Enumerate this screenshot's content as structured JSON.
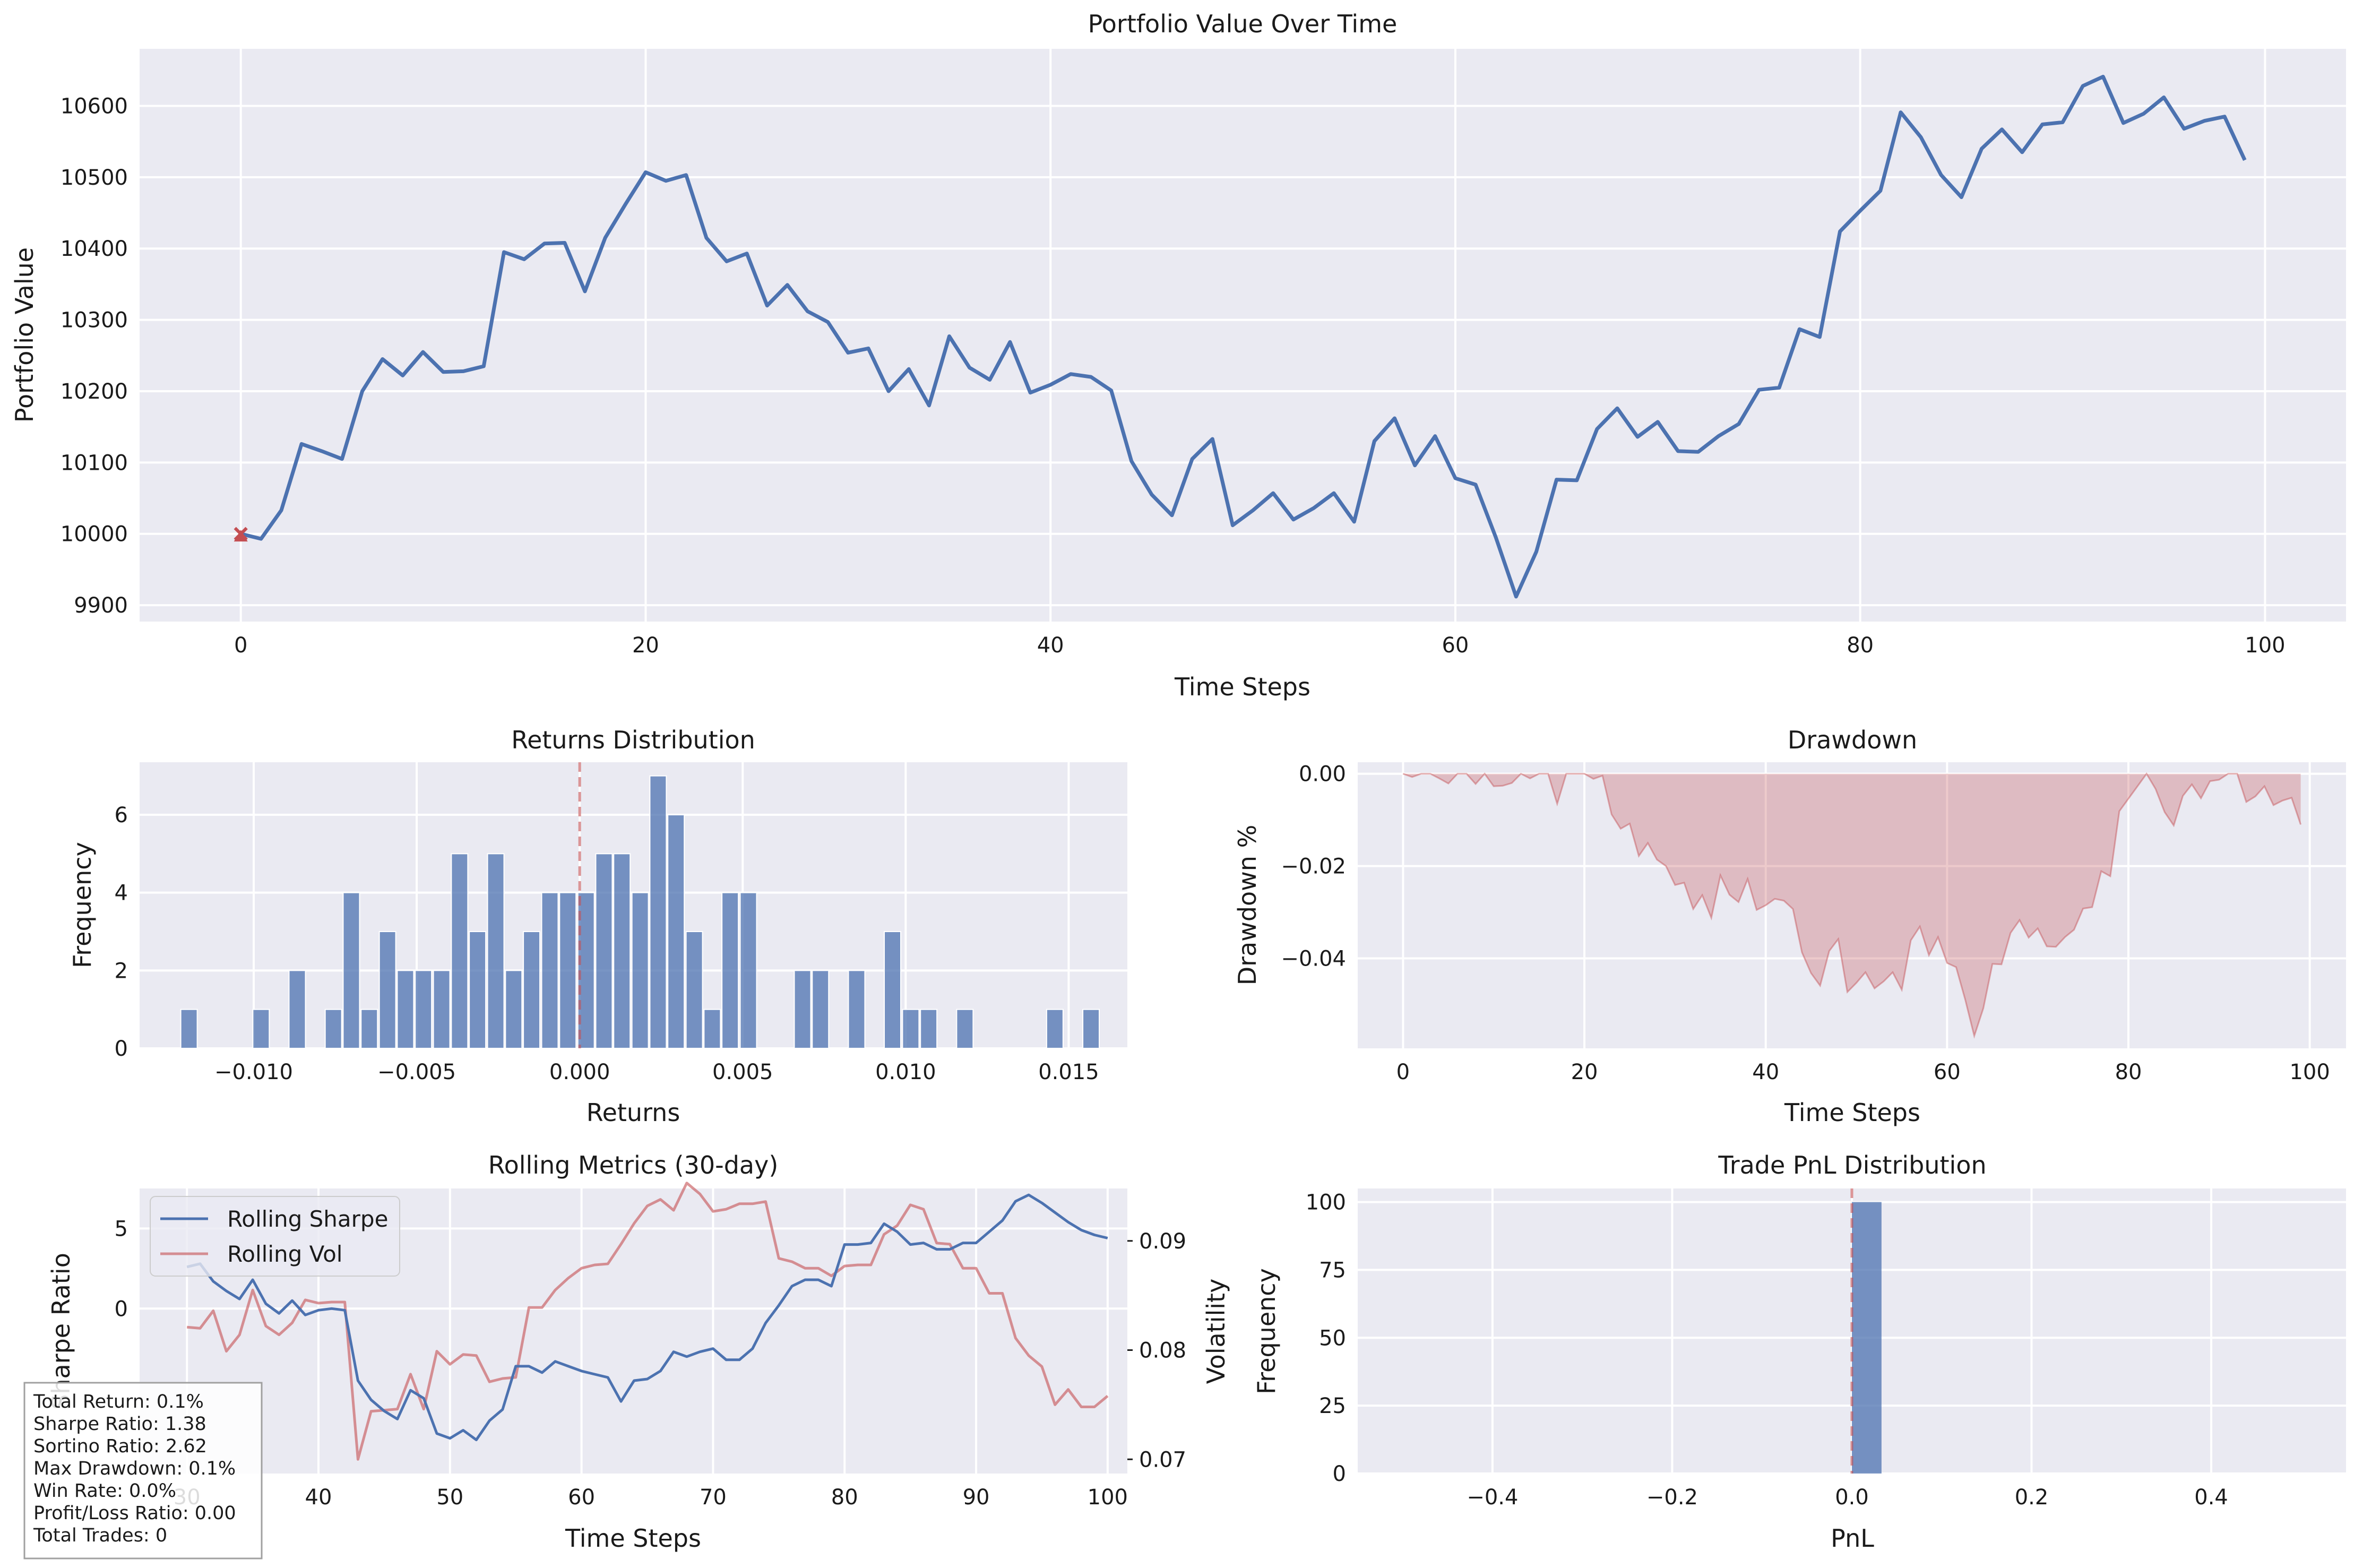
{
  "colors": {
    "blue": "#4c72b0",
    "red": "#c44e52",
    "panel": "#eaeaf2"
  },
  "chart_data": [
    {
      "type": "line",
      "title": "Portfolio Value Over Time",
      "xlabel": "Time Steps",
      "ylabel": "Portfolio Value",
      "xlim": [
        -5,
        104
      ],
      "ylim": [
        9877,
        10680
      ],
      "xticks": [
        0,
        20,
        40,
        60,
        80,
        100
      ],
      "yticks": [
        9900,
        10000,
        10100,
        10200,
        10300,
        10400,
        10500,
        10600
      ],
      "xtick_labels": [
        "0",
        "20",
        "40",
        "60",
        "80",
        "100"
      ],
      "ytick_labels": [
        "9900",
        "10000",
        "10100",
        "10200",
        "10300",
        "10400",
        "10500",
        "10600"
      ],
      "grid": true,
      "markers": [
        {
          "x": 0,
          "y": 10000,
          "marker": "x"
        },
        {
          "x": 0,
          "y": 9996,
          "marker": "^"
        }
      ],
      "values": [
        10000,
        9993,
        10033,
        10126,
        10116,
        10105,
        10200,
        10245,
        10222,
        10255,
        10227,
        10228,
        10235,
        10395,
        10385,
        10407,
        10408,
        10340,
        10415,
        10462,
        10507,
        10495,
        10503,
        10415,
        10382,
        10393,
        10320,
        10349,
        10312,
        10297,
        10254,
        10260,
        10200,
        10231,
        10180,
        10277,
        10233,
        10216,
        10269,
        10198,
        10209,
        10224,
        10220,
        10201,
        10102,
        10055,
        10026,
        10105,
        10133,
        10012,
        10033,
        10057,
        10020,
        10036,
        10057,
        10017,
        10130,
        10162,
        10096,
        10137,
        10078,
        10069,
        9995,
        9912,
        9975,
        10076,
        10075,
        10147,
        10176,
        10136,
        10157,
        10116,
        10115,
        10137,
        10154,
        10202,
        10205,
        10287,
        10276,
        10424,
        10453,
        10481,
        10591,
        10556,
        10503,
        10472,
        10540,
        10567,
        10535,
        10574,
        10577,
        10628,
        10641,
        10576,
        10589,
        10612,
        10568,
        10579,
        10585,
        10524
      ]
    },
    {
      "type": "bar",
      "title": "Returns Distribution",
      "xlabel": "Returns",
      "ylabel": "Frequency",
      "xlim": [
        -0.0135,
        0.0168
      ],
      "ylim": [
        0,
        7.35
      ],
      "xticks": [
        -0.01,
        -0.005,
        0.0,
        0.005,
        0.01,
        0.015
      ],
      "yticks": [
        0,
        2,
        4,
        6
      ],
      "xtick_labels": [
        "−0.010",
        "−0.005",
        "0.000",
        "0.005",
        "0.010",
        "0.015"
      ],
      "ytick_labels": [
        "0",
        "2",
        "4",
        "6"
      ],
      "bin_width": 0.000553,
      "mean_line": 0.0,
      "bins": [
        {
          "x": -0.01196,
          "v": 1
        },
        {
          "x": -0.00975,
          "v": 1
        },
        {
          "x": -0.00864,
          "v": 2
        },
        {
          "x": -0.00753,
          "v": 1
        },
        {
          "x": -0.00698,
          "v": 4
        },
        {
          "x": -0.00643,
          "v": 1
        },
        {
          "x": -0.00587,
          "v": 3
        },
        {
          "x": -0.00532,
          "v": 2
        },
        {
          "x": -0.00477,
          "v": 2
        },
        {
          "x": -0.00421,
          "v": 2
        },
        {
          "x": -0.00366,
          "v": 5
        },
        {
          "x": -0.00311,
          "v": 3
        },
        {
          "x": -0.00255,
          "v": 5
        },
        {
          "x": -0.002,
          "v": 2
        },
        {
          "x": -0.00145,
          "v": 3
        },
        {
          "x": -0.00089,
          "v": 4
        },
        {
          "x": -0.00034,
          "v": 4
        },
        {
          "x": 0.00022,
          "v": 4
        },
        {
          "x": 0.00077,
          "v": 5
        },
        {
          "x": 0.00132,
          "v": 5
        },
        {
          "x": 0.00188,
          "v": 4
        },
        {
          "x": 0.00243,
          "v": 7
        },
        {
          "x": 0.00298,
          "v": 6
        },
        {
          "x": 0.00354,
          "v": 3
        },
        {
          "x": 0.00409,
          "v": 1
        },
        {
          "x": 0.00464,
          "v": 4
        },
        {
          "x": 0.0052,
          "v": 4
        },
        {
          "x": 0.00686,
          "v": 2
        },
        {
          "x": 0.00741,
          "v": 2
        },
        {
          "x": 0.00852,
          "v": 2
        },
        {
          "x": 0.00962,
          "v": 3
        },
        {
          "x": 0.01018,
          "v": 1
        },
        {
          "x": 0.01073,
          "v": 1
        },
        {
          "x": 0.01184,
          "v": 1
        },
        {
          "x": 0.0146,
          "v": 1
        },
        {
          "x": 0.01571,
          "v": 1
        }
      ]
    },
    {
      "type": "area",
      "title": "Drawdown",
      "xlabel": "Time Steps",
      "ylabel": "Drawdown %",
      "xlim": [
        -5,
        104
      ],
      "ylim": [
        -0.0595,
        0.0025
      ],
      "xticks": [
        0,
        20,
        40,
        60,
        80,
        100
      ],
      "yticks": [
        0.0,
        -0.02,
        -0.04
      ],
      "xtick_labels": [
        "0",
        "20",
        "40",
        "60",
        "80",
        "100"
      ],
      "ytick_labels": [
        "0.00",
        "−0.02",
        "−0.04"
      ],
      "values": [
        0.0,
        -0.0007,
        0.0,
        0.0,
        -0.001,
        -0.0021,
        0.0,
        0.0,
        -0.0022,
        0.0,
        -0.0027,
        -0.0026,
        -0.002,
        0.0,
        -0.001,
        0.0,
        0.0,
        -0.0065,
        0.0,
        0.0,
        0.0,
        -0.0011,
        -0.0004,
        -0.0088,
        -0.0119,
        -0.0108,
        -0.0178,
        -0.015,
        -0.0186,
        -0.02,
        -0.0241,
        -0.0236,
        -0.0293,
        -0.0263,
        -0.0312,
        -0.022,
        -0.0262,
        -0.0278,
        -0.0228,
        -0.0295,
        -0.0285,
        -0.0271,
        -0.0275,
        -0.0293,
        -0.0387,
        -0.0432,
        -0.0459,
        -0.0384,
        -0.0358,
        -0.0473,
        -0.0453,
        -0.043,
        -0.0465,
        -0.045,
        -0.043,
        -0.0468,
        -0.0361,
        -0.0331,
        -0.0393,
        -0.0354,
        -0.041,
        -0.0419,
        -0.0489,
        -0.0568,
        -0.0508,
        -0.0412,
        -0.0413,
        -0.0345,
        -0.0317,
        -0.0355,
        -0.0335,
        -0.0374,
        -0.0375,
        -0.0354,
        -0.0338,
        -0.0292,
        -0.0289,
        -0.0211,
        -0.0222,
        -0.0081,
        -0.0054,
        -0.0027,
        0.0,
        -0.0033,
        -0.0083,
        -0.0112,
        -0.0048,
        -0.0023,
        -0.0053,
        -0.0016,
        -0.0013,
        0.0,
        0.0,
        -0.0061,
        -0.0049,
        -0.0027,
        -0.0068,
        -0.0058,
        -0.0052,
        -0.011
      ]
    },
    {
      "type": "line",
      "title": "Rolling Metrics (30-day)",
      "xlabel": "Time Steps",
      "ylabel": "Sharpe Ratio",
      "y2label": "Volatility",
      "xlim": [
        26.4,
        101.5
      ],
      "ylim": [
        -10.3,
        7.5
      ],
      "y2lim": [
        0.0687,
        0.0948
      ],
      "xticks": [
        30,
        40,
        50,
        60,
        70,
        80,
        90,
        100
      ],
      "xtick_labels": [
        "30",
        "40",
        "50",
        "60",
        "70",
        "80",
        "90",
        "100"
      ],
      "yticks": [
        5,
        0
      ],
      "ytick_labels": [
        "5",
        "0"
      ],
      "y2ticks": [
        0.07,
        0.08,
        0.09
      ],
      "y2tick_labels": [
        "0.07",
        "0.08",
        "0.09"
      ],
      "legend": "upper-left",
      "x_start": 30,
      "series": [
        {
          "name": "Rolling Sharpe",
          "axis": "left",
          "values": [
            2.6,
            2.8,
            1.7,
            1.1,
            0.6,
            1.8,
            0.3,
            -0.3,
            0.5,
            -0.4,
            -0.1,
            0.0,
            -0.1,
            -4.5,
            -5.7,
            -6.4,
            -6.9,
            -5.1,
            -5.6,
            -7.8,
            -8.1,
            -7.6,
            -8.2,
            -7.0,
            -6.3,
            -3.6,
            -3.6,
            -4.0,
            -3.3,
            -3.6,
            -3.9,
            -4.1,
            -4.3,
            -5.8,
            -4.5,
            -4.4,
            -3.9,
            -2.7,
            -3.0,
            -2.7,
            -2.5,
            -3.2,
            -3.2,
            -2.5,
            -0.9,
            0.2,
            1.4,
            1.8,
            1.8,
            1.4,
            4.0,
            4.0,
            4.1,
            5.3,
            4.8,
            4.0,
            4.1,
            3.7,
            3.7,
            4.1,
            4.1,
            4.8,
            5.5,
            6.7,
            7.1,
            6.6,
            6.0,
            5.4,
            4.9,
            4.6,
            4.4
          ]
        },
        {
          "name": "Rolling Vol",
          "axis": "right",
          "values": [
            0.0821,
            0.082,
            0.0836,
            0.0799,
            0.0814,
            0.0855,
            0.0822,
            0.0814,
            0.0825,
            0.0846,
            0.0843,
            0.0844,
            0.0844,
            0.07,
            0.0744,
            0.0745,
            0.0746,
            0.0778,
            0.0746,
            0.0799,
            0.0787,
            0.0796,
            0.0795,
            0.0771,
            0.0774,
            0.0775,
            0.0839,
            0.0839,
            0.0855,
            0.0866,
            0.0875,
            0.0878,
            0.0879,
            0.0897,
            0.0916,
            0.0932,
            0.0938,
            0.0928,
            0.0953,
            0.0943,
            0.0927,
            0.0929,
            0.0934,
            0.0934,
            0.0936,
            0.0884,
            0.0881,
            0.0875,
            0.0875,
            0.0868,
            0.0877,
            0.0878,
            0.0878,
            0.0906,
            0.0914,
            0.0933,
            0.0929,
            0.0898,
            0.0897,
            0.0875,
            0.0875,
            0.0852,
            0.0852,
            0.0811,
            0.0795,
            0.0785,
            0.075,
            0.0764,
            0.0748,
            0.0748,
            0.0758
          ]
        }
      ]
    },
    {
      "type": "bar",
      "title": "Trade PnL Distribution",
      "xlabel": "PnL",
      "ylabel": "Frequency",
      "xlim": [
        -0.55,
        0.55
      ],
      "ylim": [
        0,
        105
      ],
      "xticks": [
        -0.4,
        -0.2,
        0.0,
        0.2,
        0.4
      ],
      "xtick_labels": [
        "−0.4",
        "−0.2",
        "0.0",
        "0.2",
        "0.4"
      ],
      "yticks": [
        0,
        25,
        50,
        75,
        100
      ],
      "ytick_labels": [
        "0",
        "25",
        "50",
        "75",
        "100"
      ],
      "bins": [
        {
          "x0": 0.0,
          "x1": 0.033,
          "v": 100
        }
      ],
      "mean_line": 0.0
    }
  ],
  "stats_box": {
    "lines": [
      "Total Return: 0.1%",
      "Sharpe Ratio: 1.38",
      "Sortino Ratio: 2.62",
      "Max Drawdown: 0.1%",
      "Win Rate: 0.0%",
      "Profit/Loss Ratio: 0.00",
      "Total Trades: 0"
    ]
  }
}
